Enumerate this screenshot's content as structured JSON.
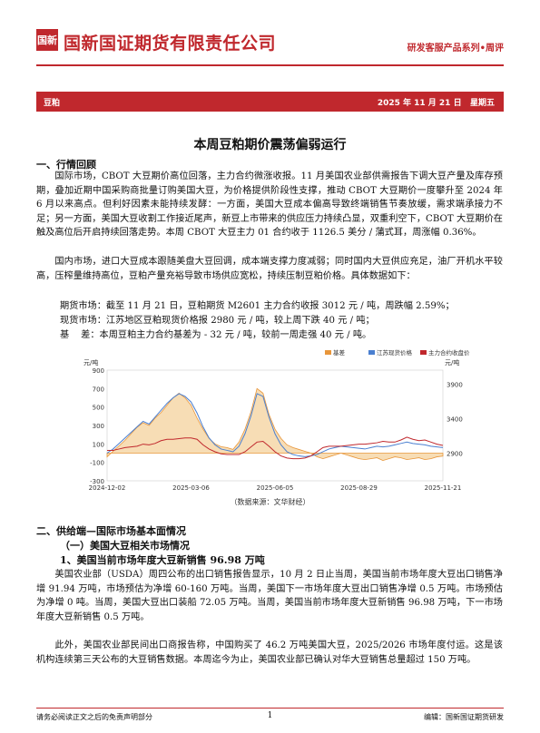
{
  "header": {
    "logo_text": "国新",
    "company": "国新国证期货有限责任公司",
    "series": "研发客服产品系列•周评"
  },
  "band": {
    "category": "豆粕",
    "date": "2025 年 11 月 21 日",
    "weekday": "星期五"
  },
  "title": "本周豆粕期价震荡偏弱运行",
  "section1": {
    "heading": "一、行情回顾",
    "p1": "国际市场，CBOT 大豆期价高位回落，主力合约微涨收报。11 月美国农业部供需报告下调大豆产量及库存预期，叠加近期中国采购商批量订购美国大豆，为价格提供阶段性支撑，推动 CBOT 大豆期价一度攀升至 2024 年 6 月以来高点。但利好因素未能持续发酵：一方面，美国大豆成本偏高导致终端销售节奏放缓，需求端承接力不足；另一方面，美国大豆收割工作接近尾声，新豆上市带来的供应压力持续凸显，双重利空下，CBOT 大豆期价在触及高位后开启持续回落走势。本周 CBOT 大豆主力 01 合约收于 1126.5 美分 / 蒲式耳，周涨幅 0.36%。",
    "p2": "国内市场，进口大豆成本跟随美盘大豆回调，成本端支撑力度减弱；同时国内大豆供应充足，油厂开机水平较高，压榨量维持高位，豆粕产量充裕导致市场供应宽松，持续压制豆粕价格。具体数据如下：",
    "l1": "期货市场：截至 11 月 21 日，豆粕期货 M2601 主力合约收报 3012 元 / 吨，周跌幅 2.59%；",
    "l2": "现货市场：江苏地区豆粕现货价格报 2980 元 / 吨，较上周下跌 40 元 / 吨；",
    "l3": "基    差：本周豆粕主力合约基差为 - 32 元 / 吨，较前一周走强 40 元 / 吨。"
  },
  "chart_data": {
    "type": "line",
    "left_unit": "元/吨",
    "right_unit": "元/吨",
    "left_ylim": [
      -300,
      900
    ],
    "left_ticks": [
      "900",
      "700",
      "500",
      "300",
      "100",
      "-100",
      "-300"
    ],
    "right_ylim": [
      2500,
      4100
    ],
    "right_ticks": [
      "3900",
      "3400",
      "2900",
      "2400"
    ],
    "x_ticks": [
      "2024-12-02",
      "2025-03-06",
      "2025-06-05",
      "2025-08-29",
      "2025-11-21"
    ],
    "legend": [
      "基差",
      "江苏现货价格",
      "主力合约收盘价"
    ],
    "colors": {
      "basis": "#e8963a",
      "spot": "#4a7fd0",
      "futures": "#c0282d"
    },
    "basis": [
      -40,
      20,
      80,
      140,
      210,
      280,
      330,
      300,
      380,
      440,
      520,
      600,
      650,
      600,
      520,
      380,
      260,
      160,
      100,
      70,
      60,
      40,
      120,
      260,
      450,
      700,
      650,
      420,
      260,
      160,
      90,
      60,
      40,
      20,
      0,
      -40,
      -60,
      -40,
      -20,
      0,
      -20,
      -40,
      -60,
      -70,
      -60,
      -50,
      -80,
      -60,
      -40,
      -50,
      -70,
      -60,
      -50,
      -70,
      -60,
      -40,
      -32
    ],
    "spot": [
      2900,
      2960,
      3040,
      3120,
      3200,
      3280,
      3360,
      3320,
      3420,
      3520,
      3620,
      3700,
      3760,
      3720,
      3640,
      3480,
      3280,
      3120,
      3020,
      2960,
      2940,
      2920,
      3000,
      3180,
      3440,
      3760,
      3720,
      3420,
      3180,
      3020,
      2920,
      2880,
      2860,
      2850,
      2860,
      2880,
      2920,
      2960,
      2980,
      3000,
      2990,
      2980,
      2970,
      2960,
      2980,
      3000,
      2990,
      3000,
      3020,
      3040,
      3060,
      3040,
      3030,
      3020,
      3000,
      2990,
      2980
    ],
    "futures": [
      2940,
      2940,
      2960,
      2980,
      2990,
      3000,
      3030,
      3020,
      3040,
      3080,
      3100,
      3100,
      3110,
      3120,
      3120,
      3100,
      3020,
      2960,
      2920,
      2890,
      2880,
      2880,
      2880,
      2920,
      2990,
      3060,
      3070,
      3000,
      2920,
      2860,
      2830,
      2820,
      2820,
      2830,
      2860,
      2920,
      2980,
      3000,
      3000,
      3000,
      3010,
      3020,
      3030,
      3030,
      3040,
      3050,
      3070,
      3060,
      3060,
      3090,
      3130,
      3100,
      3080,
      3090,
      3060,
      3030,
      3012
    ]
  },
  "chart_source": "（数据来源：文华财经）",
  "section2": {
    "heading": "二、供给端—国际市场基本面情况",
    "sub": "（一）美国大豆相关市场情况",
    "sub1": "1、美国当前市场年度大豆新销售 96.98 万吨",
    "p1": "美国农业部（USDA）周四公布的出口销售报告显示，10 月 2 日止当周，美国当前市场年度大豆出口销售净增 91.94 万吨，市场预估为净增 60-160 万吨。当周，美国下一市场年度大豆出口销售净增 0.5 万吨。市场预估为净增 0 吨。当周，美国大豆出口装船 72.05 万吨。当周，美国当前市场年度大豆新销售 96.98 万吨，下一市场年度大豆新销售 0.5 万吨。",
    "p2": "此外，美国农业部民间出口商报告称，中国购买了 46.2 万吨美国大豆，2025/2026 市场年度付运。这是该机构连续第三天公布的大豆销售数据。本周迄今为止，美国农业部已确认对华大豆销售总量超过 150 万吨。"
  },
  "footer": {
    "left": "请务必阅读正文之后的免责声明部分",
    "page": "1",
    "right": "编辑：国新国证期货研发"
  }
}
